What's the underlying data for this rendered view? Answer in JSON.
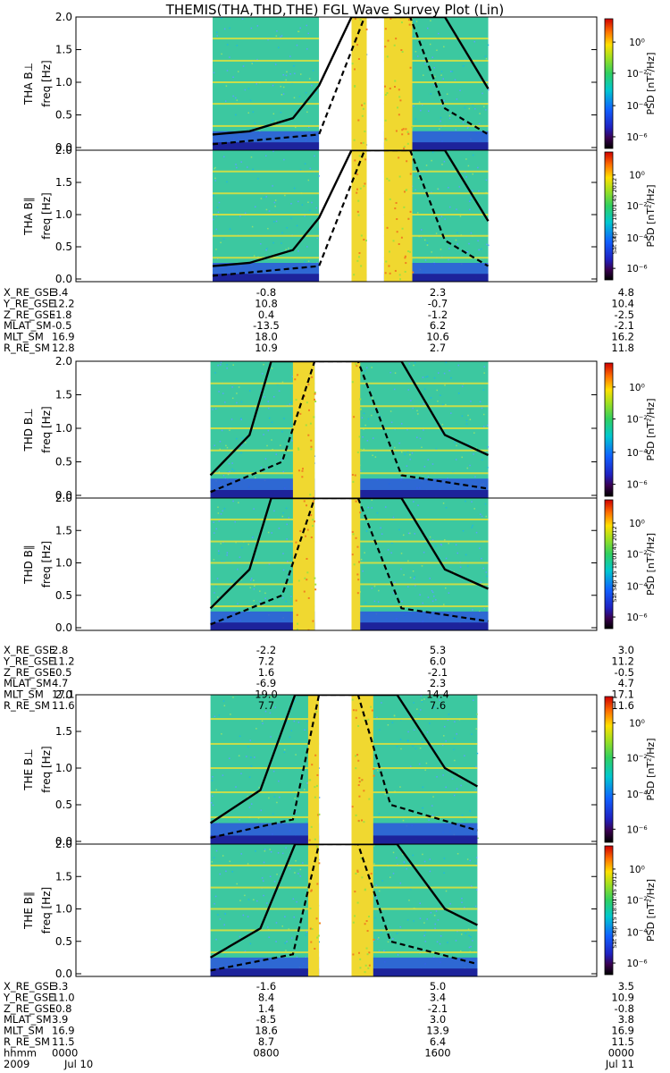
{
  "title": "THEMIS(THA,THD,THE) FGL Wave Survey Plot (Lin)",
  "colorbar": {
    "label": "PSD [nT²/Hz]",
    "ticks": [
      "10⁰",
      "10⁻²",
      "10⁻⁴",
      "10⁻⁶"
    ],
    "stamp": "Sat Sep 15 18:01:45 2012"
  },
  "y_axis": {
    "label": "freq [Hz]",
    "ticks": [
      "0.0",
      "0.5",
      "1.0",
      "1.5",
      "2.0"
    ],
    "range": [
      0,
      2
    ]
  },
  "panels": [
    {
      "probe": "THA",
      "component": "B⊥",
      "label": "THA B⊥"
    },
    {
      "probe": "THA",
      "component": "B∥",
      "label": "THA B∥"
    },
    {
      "probe": "THD",
      "component": "B⊥",
      "label": "THD B⊥"
    },
    {
      "probe": "THD",
      "component": "B∥",
      "label": "THD B∥"
    },
    {
      "probe": "THE",
      "component": "B⊥",
      "label": "THE B⊥"
    },
    {
      "probe": "THE",
      "component": "B∥",
      "label": "THE B∥"
    }
  ],
  "ephemeris": [
    {
      "rows": [
        {
          "name": "X_RE_GSE",
          "values": [
            "3.4",
            "-0.8",
            "2.3",
            "4.8"
          ]
        },
        {
          "name": "Y_RE_GSE",
          "values": [
            "12.2",
            "10.8",
            "-0.7",
            "10.4"
          ]
        },
        {
          "name": "Z_RE_GSE",
          "values": [
            "-1.8",
            "0.4",
            "-1.2",
            "-2.5"
          ]
        },
        {
          "name": "MLAT_SM",
          "values": [
            "-0.5",
            "-13.5",
            "6.2",
            "-2.1"
          ]
        },
        {
          "name": "MLT_SM",
          "values": [
            "16.9",
            "18.0",
            "10.6",
            "16.2"
          ]
        },
        {
          "name": "R_RE_SM",
          "values": [
            "12.8",
            "10.9",
            "2.7",
            "11.8"
          ]
        }
      ]
    },
    {
      "rows": [
        {
          "name": "X_RE_GSE",
          "values": [
            "2.8",
            "-2.2",
            "5.3",
            "3.0"
          ]
        },
        {
          "name": "Y_RE_GSE",
          "values": [
            "11.2",
            "7.2",
            "6.0",
            "11.2"
          ]
        },
        {
          "name": "Z_RE_GSE",
          "values": [
            "-0.5",
            "1.6",
            "-2.1",
            "-0.5"
          ]
        },
        {
          "name": "MLAT_SM",
          "values": [
            "4.7",
            "-6.9",
            "2.3",
            "4.7"
          ]
        },
        {
          "name": "MLT_SM",
          "values": [
            "17.1",
            "19.0",
            "14.4",
            "17.1"
          ]
        },
        {
          "name": "R_RE_SM",
          "values": [
            "11.6",
            "7.7",
            "7.6",
            "11.6"
          ]
        }
      ]
    },
    {
      "rows": [
        {
          "name": "X_RE_GSE",
          "values": [
            "3.3",
            "-1.6",
            "5.0",
            "3.5"
          ]
        },
        {
          "name": "Y_RE_GSE",
          "values": [
            "11.0",
            "8.4",
            "3.4",
            "10.9"
          ]
        },
        {
          "name": "Z_RE_GSE",
          "values": [
            "-0.8",
            "1.4",
            "-2.1",
            "-0.8"
          ]
        },
        {
          "name": "MLAT_SM",
          "values": [
            "3.9",
            "-8.5",
            "3.0",
            "3.8"
          ]
        },
        {
          "name": "MLT_SM",
          "values": [
            "16.9",
            "18.6",
            "13.9",
            "16.9"
          ]
        },
        {
          "name": "R_RE_SM",
          "values": [
            "11.5",
            "8.7",
            "6.4",
            "11.5"
          ]
        },
        {
          "name": "hhmm",
          "values": [
            "0000",
            "0800",
            "1600",
            "0000"
          ]
        }
      ]
    }
  ],
  "date_row": {
    "left_year": "2009",
    "left_date": "Jul 10",
    "right_date": "Jul 11"
  },
  "chart_data": {
    "type": "heatmap",
    "x_unit": "hours since 2009-07-10 00:00 UT",
    "x_range_hours": [
      0,
      24
    ],
    "y_range_hz": [
      0,
      2
    ],
    "colorscale": "rainbow, log10 PSD nT^2/Hz from -6 to 1",
    "probes": [
      {
        "name": "THA",
        "data_intervals_hours": [
          [
            6.3,
            11.2
          ],
          [
            12.7,
            13.4
          ],
          [
            14.2,
            19.0
          ]
        ],
        "enhanced_power_intervals_hours": [
          [
            12.7,
            13.4
          ],
          [
            14.2,
            15.5
          ]
        ],
        "line_solid": [
          [
            6.3,
            0.2
          ],
          [
            8.0,
            0.25
          ],
          [
            10.0,
            0.45
          ],
          [
            11.2,
            0.95
          ],
          [
            12.7,
            2.0
          ],
          [
            17.0,
            2.0
          ],
          [
            19.0,
            0.9
          ]
        ],
        "line_dashed": [
          [
            6.3,
            0.05
          ],
          [
            11.2,
            0.2
          ],
          [
            13.3,
            2.0
          ],
          [
            15.4,
            2.0
          ],
          [
            17.0,
            0.6
          ],
          [
            19.0,
            0.2
          ]
        ]
      },
      {
        "name": "THD",
        "data_intervals_hours": [
          [
            6.2,
            11.0
          ],
          [
            12.7,
            19.0
          ]
        ],
        "enhanced_power_intervals_hours": [
          [
            10.0,
            11.0
          ],
          [
            12.7,
            13.1
          ]
        ],
        "line_solid": [
          [
            6.2,
            0.3
          ],
          [
            8.0,
            0.9
          ],
          [
            9.0,
            2.0
          ],
          [
            15.0,
            2.0
          ],
          [
            17.0,
            0.9
          ],
          [
            19.0,
            0.6
          ]
        ],
        "line_dashed": [
          [
            6.2,
            0.05
          ],
          [
            9.5,
            0.5
          ],
          [
            11.0,
            2.0
          ],
          [
            13.0,
            2.0
          ],
          [
            15.0,
            0.3
          ],
          [
            19.0,
            0.1
          ]
        ]
      },
      {
        "name": "THE",
        "data_intervals_hours": [
          [
            6.2,
            11.2
          ],
          [
            12.7,
            18.5
          ]
        ],
        "enhanced_power_intervals_hours": [
          [
            10.7,
            11.2
          ],
          [
            12.7,
            13.7
          ]
        ],
        "line_solid": [
          [
            6.2,
            0.25
          ],
          [
            8.5,
            0.7
          ],
          [
            10.1,
            2.0
          ],
          [
            14.8,
            2.0
          ],
          [
            17.0,
            1.0
          ],
          [
            18.5,
            0.75
          ]
        ],
        "line_dashed": [
          [
            6.2,
            0.05
          ],
          [
            10.0,
            0.3
          ],
          [
            11.2,
            2.0
          ],
          [
            13.0,
            2.0
          ],
          [
            14.5,
            0.5
          ],
          [
            18.5,
            0.15
          ]
        ]
      }
    ]
  }
}
